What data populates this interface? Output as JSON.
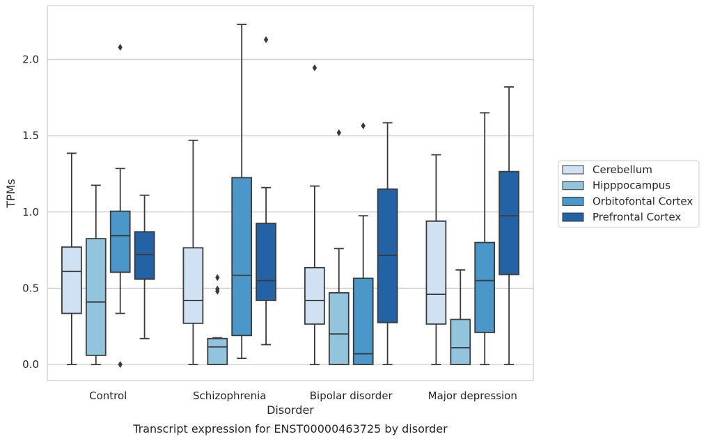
{
  "chart_data": {
    "type": "box",
    "title": "",
    "caption": "Transcript expression for ENST00000463725 by disorder",
    "xlabel": "Disorder",
    "ylabel": "TPMs",
    "ylim": [
      -0.11,
      2.35
    ],
    "yticks": [
      "0.0",
      "0.5",
      "1.0",
      "1.5",
      "2.0"
    ],
    "ytick_values": [
      0.0,
      0.5,
      1.0,
      1.5,
      2.0
    ],
    "grid": "horizontal",
    "legend_position": "right",
    "categories": [
      "Control",
      "Schizophrenia",
      "Bipolar disorder",
      "Major depression"
    ],
    "series": [
      {
        "name": "Cerebellum",
        "color": "#cfe1f2",
        "boxes": [
          {
            "whisker_low": 0.0,
            "q1": 0.335,
            "median": 0.61,
            "q3": 0.77,
            "whisker_high": 1.385,
            "outliers": []
          },
          {
            "whisker_low": 0.0,
            "q1": 0.27,
            "median": 0.42,
            "q3": 0.765,
            "whisker_high": 1.47,
            "outliers": []
          },
          {
            "whisker_low": 0.0,
            "q1": 0.265,
            "median": 0.42,
            "q3": 0.635,
            "whisker_high": 1.17,
            "outliers": [
              1.945
            ]
          },
          {
            "whisker_low": 0.0,
            "q1": 0.265,
            "median": 0.46,
            "q3": 0.94,
            "whisker_high": 1.375,
            "outliers": []
          }
        ]
      },
      {
        "name": "Hipppocampus",
        "color": "#93c4de",
        "boxes": [
          {
            "whisker_low": 0.0,
            "q1": 0.06,
            "median": 0.41,
            "q3": 0.825,
            "whisker_high": 1.175,
            "outliers": []
          },
          {
            "whisker_low": 0.0,
            "q1": 0.0,
            "median": 0.115,
            "q3": 0.17,
            "whisker_high": 0.175,
            "outliers": [
              0.57,
              0.495,
              0.48
            ]
          },
          {
            "whisker_low": 0.0,
            "q1": 0.0,
            "median": 0.2,
            "q3": 0.47,
            "whisker_high": 0.76,
            "outliers": [
              1.52
            ]
          },
          {
            "whisker_low": 0.0,
            "q1": 0.0,
            "median": 0.11,
            "q3": 0.295,
            "whisker_high": 0.62,
            "outliers": []
          }
        ]
      },
      {
        "name": "Orbitofontal Cortex",
        "color": "#4b97c9",
        "boxes": [
          {
            "whisker_low": 0.335,
            "q1": 0.605,
            "median": 0.845,
            "q3": 1.005,
            "whisker_high": 1.285,
            "outliers": [
              0.0,
              2.08
            ]
          },
          {
            "whisker_low": 0.04,
            "q1": 0.19,
            "median": 0.585,
            "q3": 1.225,
            "whisker_high": 2.23,
            "outliers": []
          },
          {
            "whisker_low": 0.0,
            "q1": 0.0,
            "median": 0.07,
            "q3": 0.565,
            "whisker_high": 0.975,
            "outliers": [
              1.565
            ]
          },
          {
            "whisker_low": 0.0,
            "q1": 0.21,
            "median": 0.55,
            "q3": 0.8,
            "whisker_high": 1.65,
            "outliers": []
          }
        ]
      },
      {
        "name": "Prefrontal Cortex",
        "color": "#2362a5",
        "boxes": [
          {
            "whisker_low": 0.17,
            "q1": 0.56,
            "median": 0.72,
            "q3": 0.87,
            "whisker_high": 1.11,
            "outliers": []
          },
          {
            "whisker_low": 0.13,
            "q1": 0.42,
            "median": 0.55,
            "q3": 0.925,
            "whisker_high": 1.16,
            "outliers": [
              2.13
            ]
          },
          {
            "whisker_low": 0.0,
            "q1": 0.275,
            "median": 0.715,
            "q3": 1.15,
            "whisker_high": 1.585,
            "outliers": []
          },
          {
            "whisker_low": 0.0,
            "q1": 0.59,
            "median": 0.975,
            "q3": 1.265,
            "whisker_high": 1.82,
            "outliers": []
          }
        ]
      }
    ]
  }
}
